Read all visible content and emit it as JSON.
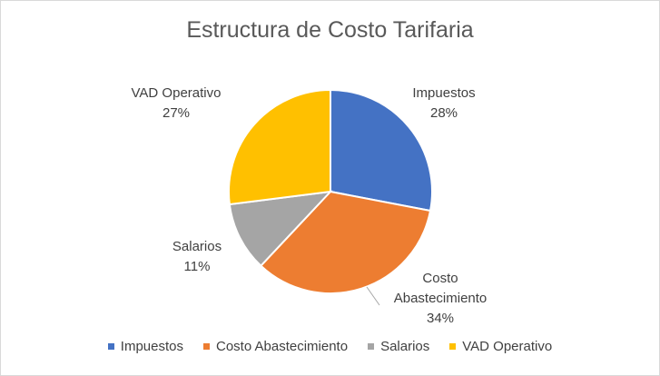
{
  "chart_data": {
    "type": "pie",
    "title": "Estructura de Costo Tarifaria",
    "slices": [
      {
        "name": "Impuestos",
        "value": 28,
        "label_lines": [
          "Impuestos",
          "28%"
        ],
        "color": "#4472c4"
      },
      {
        "name": "Costo Abastecimiento",
        "value": 34,
        "label_lines": [
          "Costo",
          "Abastecimiento",
          "34%"
        ],
        "color": "#ed7d31"
      },
      {
        "name": "Salarios",
        "value": 11,
        "label_lines": [
          "Salarios",
          "11%"
        ],
        "color": "#a5a5a5"
      },
      {
        "name": "VAD Operativo",
        "value": 27,
        "label_lines": [
          "VAD Operativo",
          "27%"
        ],
        "color": "#ffc000"
      }
    ],
    "legend_position": "bottom",
    "start_angle": "12 o'clock",
    "direction": "clockwise"
  }
}
